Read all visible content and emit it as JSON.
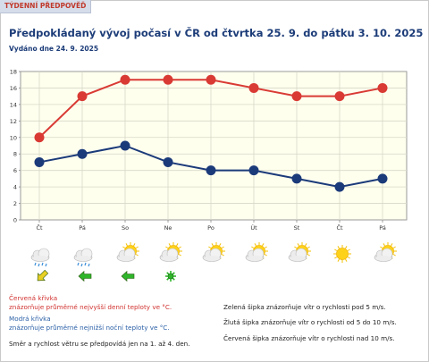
{
  "header": {
    "tab_label": "TÝDENNÍ PŘEDPOVĚĎ",
    "title": "Předpokládaný vývoj počasí v ČR od čtvrtka 25. 9. do pátku 3. 10. 2025",
    "issued": "Vydáno dne 24. 9. 2025"
  },
  "chart_data": {
    "type": "line",
    "categories": [
      "Čt",
      "Pá",
      "So",
      "Ne",
      "Po",
      "Út",
      "St",
      "Čt",
      "Pá"
    ],
    "series": [
      {
        "name": "Červená křivka",
        "color": "#d93a34",
        "values": [
          10,
          15,
          17,
          17,
          17,
          16,
          15,
          15,
          16
        ]
      },
      {
        "name": "Modrá křivka",
        "color": "#1b3a7a",
        "values": [
          7,
          8,
          9,
          7,
          6,
          6,
          5,
          4,
          5
        ]
      }
    ],
    "ylim": [
      0,
      18
    ],
    "yticks": [
      0,
      2,
      4,
      6,
      8,
      10,
      12,
      14,
      16,
      18
    ],
    "grid": true,
    "background": "#ffffee"
  },
  "weather_icons": [
    "cloud-rain-icon",
    "cloud-rain-icon",
    "sun-cloud-icon",
    "sun-cloud-icon",
    "sun-cloud-icon",
    "sun-cloud-icon",
    "sun-cloud-icon",
    "sun-icon",
    "sun-cloud-icon"
  ],
  "wind_arrows": [
    {
      "day": 0,
      "color": "yellow",
      "icon": "arrow-southwest-icon"
    },
    {
      "day": 1,
      "color": "green",
      "icon": "arrow-west-icon"
    },
    {
      "day": 2,
      "color": "green",
      "icon": "arrow-west-icon"
    },
    {
      "day": 3,
      "color": "green",
      "icon": "wind-variable-icon"
    }
  ],
  "legend": {
    "red_title": "Červená křivka",
    "red_desc": "znázorňuje průměrné nejvyšší denní teploty ve °C.",
    "blue_title": "Modrá křivka",
    "blue_desc": "znázorňuje průměrné nejnižší noční teploty ve °C.",
    "wind_note": "Směr a rychlost větru se předpovídá jen na 1. až 4. den.",
    "green_arrow": "Zelená šipka znázorňuje vítr o rychlosti pod 5 m/s.",
    "yellow_arrow": "Žlutá šipka znázorňuje vítr o rychlosti od 5 do 10 m/s.",
    "red_arrow": "Červená šipka znázorňuje vítr o rychlosti nad 10 m/s."
  }
}
